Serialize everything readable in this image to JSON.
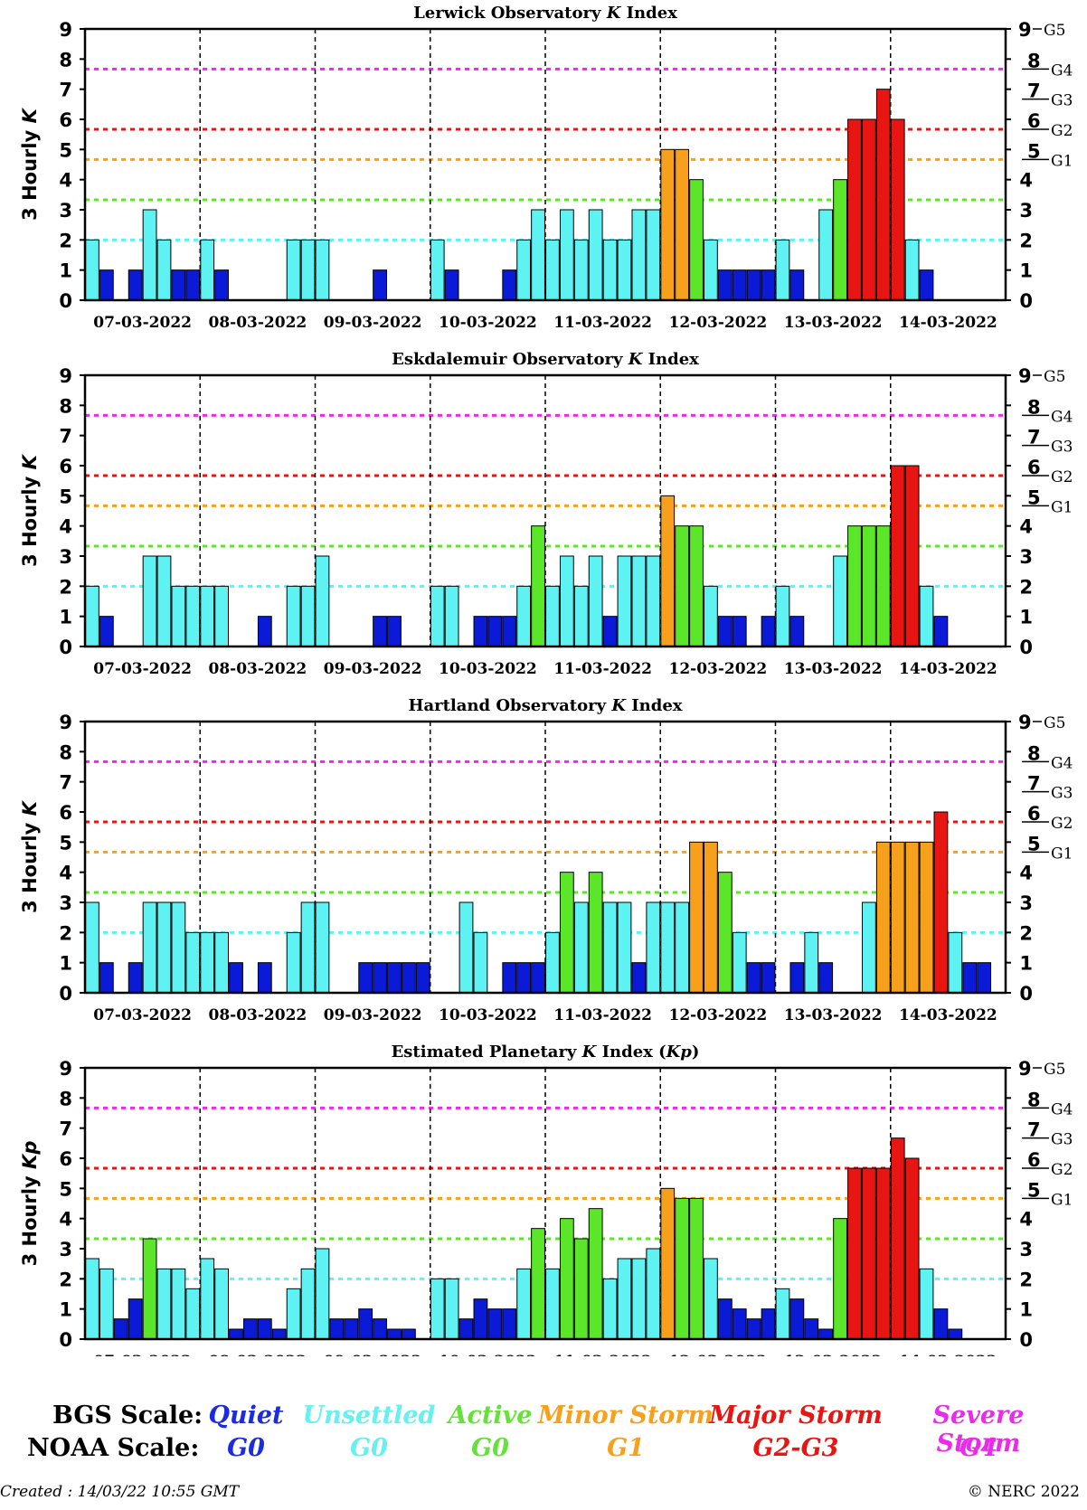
{
  "colors": {
    "quiet": "#0a1ad6",
    "unsettled": "#5ff2f2",
    "active": "#5ce62a",
    "minor": "#f7a01c",
    "major": "#e81612",
    "severe": "#ea2bea"
  },
  "dates": [
    "07-03-2022",
    "08-03-2022",
    "09-03-2022",
    "10-03-2022",
    "11-03-2022",
    "12-03-2022",
    "13-03-2022",
    "14-03-2022"
  ],
  "noaa_marks": [
    {
      "k": "5",
      "g": "G1"
    },
    {
      "k": "6",
      "g": "G2"
    },
    {
      "k": "7",
      "g": "G3"
    },
    {
      "k": "8",
      "g": "G4"
    },
    {
      "k": "9",
      "g": "G5"
    }
  ],
  "chart_data": [
    {
      "type": "bar",
      "title_pre": "Lerwick Observatory ",
      "title_k": "K",
      "title_post": " Index",
      "ylabel_pre": "3 Hourly ",
      "ylabel_k": "K",
      "ylim": [
        0,
        9
      ],
      "values": [
        2,
        1,
        0,
        1,
        3,
        2,
        1,
        1,
        2,
        1,
        0,
        0,
        0,
        0,
        2,
        2,
        2,
        0,
        0,
        0,
        1,
        0,
        0,
        0,
        2,
        1,
        0,
        0,
        0,
        1,
        2,
        3,
        2,
        3,
        2,
        3,
        2,
        2,
        3,
        3,
        5,
        5,
        4,
        2,
        1,
        1,
        1,
        1,
        2,
        1,
        0,
        3,
        4,
        6,
        6,
        7,
        6,
        2,
        1,
        0,
        0,
        0,
        0,
        0
      ]
    },
    {
      "type": "bar",
      "title_pre": "Eskdalemuir Observatory ",
      "title_k": "K",
      "title_post": " Index",
      "ylabel_pre": "3 Hourly ",
      "ylabel_k": "K",
      "ylim": [
        0,
        9
      ],
      "values": [
        2,
        1,
        0,
        0,
        3,
        3,
        2,
        2,
        2,
        2,
        0,
        0,
        1,
        0,
        2,
        2,
        3,
        0,
        0,
        0,
        1,
        1,
        0,
        0,
        2,
        2,
        0,
        1,
        1,
        1,
        2,
        4,
        2,
        3,
        2,
        3,
        1,
        3,
        3,
        3,
        5,
        4,
        4,
        2,
        1,
        1,
        0,
        1,
        2,
        1,
        0,
        0,
        3,
        4,
        4,
        4,
        6,
        6,
        2,
        1,
        0,
        0,
        0,
        0
      ]
    },
    {
      "type": "bar",
      "title_pre": "Hartland Observatory ",
      "title_k": "K",
      "title_post": " Index",
      "ylabel_pre": "3 Hourly ",
      "ylabel_k": "K",
      "ylim": [
        0,
        9
      ],
      "values": [
        3,
        1,
        0,
        1,
        3,
        3,
        3,
        2,
        2,
        2,
        1,
        0,
        1,
        0,
        2,
        3,
        3,
        0,
        0,
        1,
        1,
        1,
        1,
        1,
        0,
        0,
        3,
        2,
        0,
        1,
        1,
        1,
        2,
        4,
        3,
        4,
        3,
        3,
        1,
        3,
        3,
        3,
        5,
        5,
        4,
        2,
        1,
        1,
        0,
        1,
        2,
        1,
        0,
        0,
        3,
        5,
        5,
        5,
        5,
        6,
        2,
        1,
        1,
        0
      ]
    },
    {
      "type": "bar",
      "title_pre": "Estimated Planetary ",
      "title_k": "K",
      "title_post": " Index (",
      "title_k2": "Kp",
      "title_end": ")",
      "ylabel_pre": "3 Hourly ",
      "ylabel_k": "Kp",
      "ylim": [
        0,
        9
      ],
      "values": [
        2.67,
        2.33,
        0.67,
        1.33,
        3.33,
        2.33,
        2.33,
        1.67,
        2.67,
        2.33,
        0.33,
        0.67,
        0.67,
        0.33,
        1.67,
        2.33,
        3,
        0.67,
        0.67,
        1,
        0.67,
        0.33,
        0.33,
        0,
        2,
        2,
        0.67,
        1.33,
        1,
        1,
        2.33,
        3.67,
        2.33,
        4,
        3.33,
        4.33,
        2,
        2.67,
        2.67,
        3,
        5,
        4.67,
        4.67,
        2.67,
        1.33,
        1,
        0.67,
        1,
        1.67,
        1.33,
        0.67,
        0.33,
        4,
        5.67,
        5.67,
        5.67,
        6.67,
        6,
        2.33,
        1,
        0.33,
        0,
        0,
        0
      ]
    }
  ],
  "legend": {
    "bgs_label": "BGS Scale:",
    "noaa_label": "NOAA Scale:",
    "items": [
      {
        "bgs": "Quiet",
        "noaa": "G0",
        "color": "#1a2be0"
      },
      {
        "bgs": "Unsettled",
        "noaa": "G0",
        "color": "#66f0f0"
      },
      {
        "bgs": "Active",
        "noaa": "G0",
        "color": "#66e03a"
      },
      {
        "bgs": "Minor Storm",
        "noaa": "G1",
        "color": "#f7a01c"
      },
      {
        "bgs": "Major Storm",
        "noaa": "G2-G3",
        "color": "#e81612"
      },
      {
        "bgs": "Severe Storm",
        "noaa": "G4",
        "color": "#ea2bea"
      }
    ]
  },
  "footer": {
    "created": "Created : 14/03/22 10:55 GMT",
    "copyright": "© NERC 2022"
  }
}
